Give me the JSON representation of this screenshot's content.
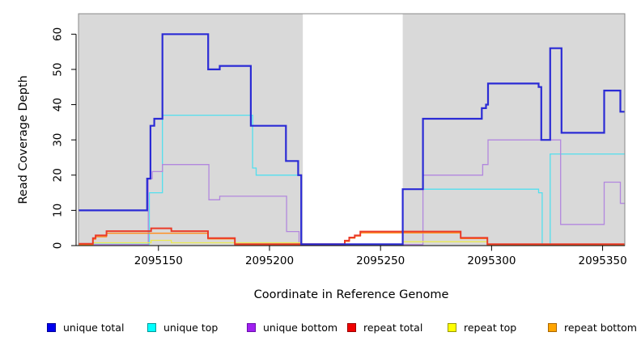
{
  "chart_data": {
    "type": "line",
    "subtype": "step-coverage-plot",
    "title": "",
    "xlabel": "Coordinate in Reference Genome",
    "ylabel": "Read Coverage Depth",
    "xlim": [
      2095114,
      2095360
    ],
    "ylim": [
      0,
      65.8
    ],
    "x_ticks": [
      2095150,
      2095200,
      2095250,
      2095300,
      2095350
    ],
    "x_tick_labels": [
      "2095150",
      "2095200",
      "2095250",
      "2095300",
      "2095350"
    ],
    "y_ticks": [
      0,
      10,
      20,
      30,
      40,
      50,
      60
    ],
    "y_tick_labels": [
      "0",
      "10",
      "20",
      "30",
      "40",
      "50",
      "60"
    ],
    "grid": false,
    "legend_position": "bottom",
    "background_shading": {
      "color": "#d9d9d9",
      "regions": [
        [
          2095114,
          2095215
        ],
        [
          2095260,
          2095360
        ]
      ],
      "note_unshaded_gap": [
        2095215,
        2095260
      ]
    },
    "axis_color": "#000000",
    "box_border_color": "#888888",
    "draw_order": [
      1,
      2,
      4,
      5,
      3,
      0
    ],
    "series": [
      {
        "name": "unique total",
        "color": "#2b2bd5",
        "swatch_color": "#0000ee",
        "swatch_border": "#000099",
        "width": 2.2,
        "steps": [
          [
            2095114,
            10
          ],
          [
            2095144.9,
            19
          ],
          [
            2095146.4,
            34
          ],
          [
            2095148.1,
            36
          ],
          [
            2095151.8,
            60
          ],
          [
            2095172.4,
            50
          ],
          [
            2095177.6,
            51
          ],
          [
            2095191.6,
            34
          ],
          [
            2095207.4,
            24
          ],
          [
            2095212.9,
            20
          ],
          [
            2095214.3,
            0.4
          ],
          [
            2095260,
            16
          ],
          [
            2095269.1,
            36
          ],
          [
            2095295.6,
            39
          ],
          [
            2095297.5,
            40
          ],
          [
            2095298.4,
            46
          ],
          [
            2095321.2,
            45
          ],
          [
            2095322.4,
            30
          ],
          [
            2095326.4,
            56
          ],
          [
            2095331.5,
            32
          ],
          [
            2095350.7,
            44
          ],
          [
            2095358,
            38
          ]
        ]
      },
      {
        "name": "unique top",
        "color": "#52dfee",
        "swatch_color": "#00ffff",
        "swatch_border": "#009999",
        "width": 1.3,
        "steps": [
          [
            2095114,
            0.4
          ],
          [
            2095145.9,
            15
          ],
          [
            2095151.8,
            37
          ],
          [
            2095192.4,
            22
          ],
          [
            2095194,
            20
          ],
          [
            2095214.3,
            0.4
          ],
          [
            2095260,
            16
          ],
          [
            2095321.2,
            15
          ],
          [
            2095322.8,
            0.4
          ],
          [
            2095326.4,
            26
          ]
        ]
      },
      {
        "name": "unique bottom",
        "color": "#b287de",
        "swatch_color": "#a020f0",
        "swatch_border": "#6a0dad",
        "width": 1.3,
        "steps": [
          [
            2095114,
            0.3
          ],
          [
            2095145.4,
            19
          ],
          [
            2095147.2,
            21
          ],
          [
            2095151.8,
            23
          ],
          [
            2095172.7,
            13
          ],
          [
            2095177.6,
            14
          ],
          [
            2095207.7,
            4
          ],
          [
            2095213.3,
            0.3
          ],
          [
            2095269.1,
            20
          ],
          [
            2095296,
            23
          ],
          [
            2095298.4,
            30
          ],
          [
            2095331.1,
            6
          ],
          [
            2095350.7,
            18
          ],
          [
            2095358,
            12
          ]
        ]
      },
      {
        "name": "repeat total",
        "color": "#ea3a28",
        "swatch_color": "#f00000",
        "swatch_border": "#990000",
        "width": 2.0,
        "steps": [
          [
            2095114,
            0.5
          ],
          [
            2095120.5,
            2.1
          ],
          [
            2095121.7,
            2.9
          ],
          [
            2095126.6,
            4.1
          ],
          [
            2095146.7,
            4.9
          ],
          [
            2095155.8,
            4.1
          ],
          [
            2095172.3,
            2.1
          ],
          [
            2095184.4,
            0.4
          ],
          [
            2095233.9,
            1.4
          ],
          [
            2095235.9,
            2.3
          ],
          [
            2095238.4,
            2.9
          ],
          [
            2095240.9,
            4.0
          ],
          [
            2095286.1,
            2.2
          ],
          [
            2095298.1,
            0.4
          ]
        ]
      },
      {
        "name": "repeat top",
        "color": "#ebeb50",
        "swatch_color": "#ffff00",
        "swatch_border": "#999900",
        "width": 1.3,
        "steps": [
          [
            2095114,
            0.15
          ],
          [
            2095120.5,
            0.8
          ],
          [
            2095146.7,
            1.5
          ],
          [
            2095155.8,
            0.8
          ],
          [
            2095214.3,
            0.2
          ],
          [
            2095260,
            1.1
          ],
          [
            2095298.1,
            0.3
          ]
        ]
      },
      {
        "name": "repeat bottom",
        "color": "#ff8c1a",
        "swatch_color": "#ffa500",
        "swatch_border": "#aa6600",
        "width": 1.3,
        "steps": [
          [
            2095114,
            0.3
          ],
          [
            2095120.5,
            1.8
          ],
          [
            2095121.7,
            2.5
          ],
          [
            2095126.6,
            3.5
          ],
          [
            2095172.3,
            1.9
          ],
          [
            2095184.4,
            0.3
          ],
          [
            2095233.9,
            1.2
          ],
          [
            2095235.9,
            2.1
          ],
          [
            2095238.4,
            2.7
          ],
          [
            2095240.9,
            3.6
          ],
          [
            2095286.1,
            2.0
          ],
          [
            2095298.1,
            0.3
          ]
        ]
      }
    ]
  },
  "legend": {
    "items": [
      "unique total",
      "unique top",
      "unique bottom",
      "repeat total",
      "repeat top",
      "repeat bottom"
    ]
  }
}
